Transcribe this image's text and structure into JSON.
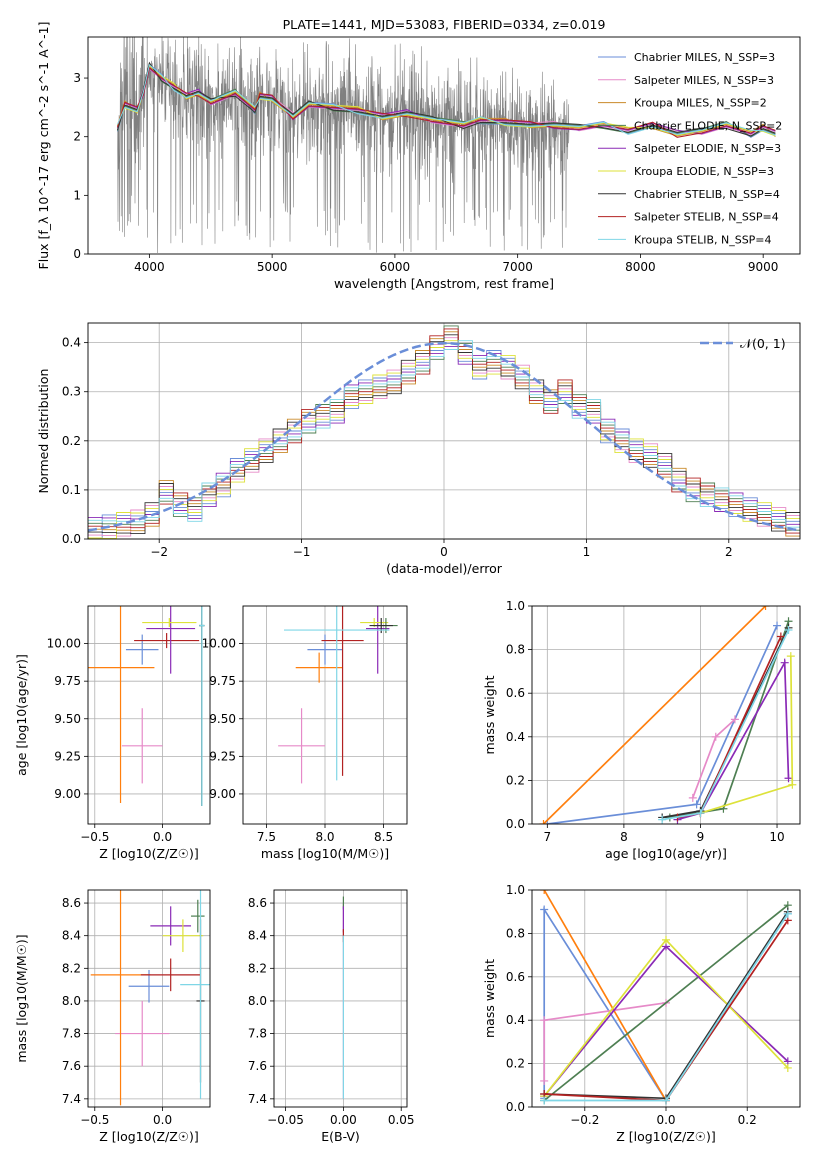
{
  "chart_data": [
    {
      "type": "line",
      "title": "PLATE=1441, MJD=53083, FIBERID=0334, z=0.019",
      "xlabel": "wavelength [Angstrom, rest frame]",
      "ylabel": "Flux [f_λ 10^-17 erg cm^-2 s^-1 A^-1]",
      "xlim": [
        3500,
        9300
      ],
      "ylim": [
        0,
        3.7
      ],
      "xticks": [
        4000,
        5000,
        6000,
        7000,
        8000,
        9000
      ],
      "yticks": [
        0,
        1,
        2,
        3
      ],
      "grid": false,
      "legend_position": "top-right",
      "legend": [
        {
          "label": "Chabrier MILES, N_SSP=3",
          "color": "#6a8ed8"
        },
        {
          "label": "Salpeter MILES, N_SSP=3",
          "color": "#e68ac8"
        },
        {
          "label": "Kroupa MILES, N_SSP=2",
          "color": "#c98a2a"
        },
        {
          "label": "Chabrier ELODIE, N_SSP=2",
          "color": "#4e7f52"
        },
        {
          "label": "Salpeter ELODIE, N_SSP=3",
          "color": "#8a2ab6"
        },
        {
          "label": "Kroupa ELODIE, N_SSP=3",
          "color": "#dde23a"
        },
        {
          "label": "Chabrier STELIB, N_SSP=4",
          "color": "#333333"
        },
        {
          "label": "Salpeter STELIB, N_SSP=4",
          "color": "#b22222"
        },
        {
          "label": "Kroupa STELIB, N_SSP=4",
          "color": "#7fd6e6"
        }
      ],
      "data_spectrum": {
        "color": "#808080",
        "wavelength_range": [
          3740,
          7420
        ],
        "median_flux": 2.3,
        "noise_band": [
          0.2,
          3.7
        ]
      },
      "model_spectrum": {
        "x": [
          3740,
          3800,
          3900,
          3950,
          4000,
          4100,
          4200,
          4300,
          4400,
          4500,
          4700,
          4860,
          4900,
          5000,
          5170,
          5300,
          5500,
          5700,
          5900,
          6100,
          6300,
          6560,
          6700,
          6900,
          7100,
          7300,
          7500,
          7700,
          7900,
          8100,
          8300,
          8500,
          8700,
          8900,
          9000,
          9100
        ],
        "y": [
          2.15,
          2.55,
          2.45,
          2.75,
          3.2,
          3.0,
          2.85,
          2.7,
          2.75,
          2.6,
          2.75,
          2.45,
          2.7,
          2.65,
          2.35,
          2.55,
          2.5,
          2.45,
          2.35,
          2.4,
          2.3,
          2.2,
          2.28,
          2.25,
          2.2,
          2.2,
          2.15,
          2.2,
          2.1,
          2.2,
          2.05,
          2.1,
          2.2,
          2.05,
          2.15,
          2.05
        ]
      }
    },
    {
      "type": "bar",
      "xlabel": "(data-model)/error",
      "ylabel": "Normed distribution",
      "xlim": [
        -2.5,
        2.5
      ],
      "ylim": [
        0,
        0.44
      ],
      "xticks": [
        -2,
        -1,
        0,
        1,
        2
      ],
      "yticks": [
        0.0,
        0.1,
        0.2,
        0.3,
        0.4
      ],
      "grid": true,
      "legend_position": "top-right",
      "legend": [
        {
          "label": "𝒩(0, 1)",
          "color": "#6a8ed8",
          "style": "dashed"
        }
      ],
      "bin_width": 0.1,
      "bin_start": -2.5,
      "histogram_values": [
        0.02,
        0.025,
        0.03,
        0.035,
        0.05,
        0.095,
        0.07,
        0.06,
        0.09,
        0.11,
        0.14,
        0.16,
        0.18,
        0.2,
        0.22,
        0.24,
        0.25,
        0.26,
        0.29,
        0.3,
        0.31,
        0.32,
        0.34,
        0.36,
        0.39,
        0.41,
        0.38,
        0.35,
        0.36,
        0.35,
        0.33,
        0.3,
        0.28,
        0.3,
        0.27,
        0.26,
        0.22,
        0.2,
        0.18,
        0.17,
        0.15,
        0.12,
        0.1,
        0.09,
        0.08,
        0.07,
        0.06,
        0.05,
        0.04,
        0.03
      ]
    },
    {
      "type": "scatter",
      "xlabel": "Z [log10(Z/Z☉)]",
      "ylabel": "age [log10(age/yr)]",
      "xlim": [
        -0.55,
        0.35
      ],
      "ylim": [
        8.8,
        10.25
      ],
      "xticks": [
        -0.5,
        0.0
      ],
      "yticks": [
        9.0,
        9.25,
        9.5,
        9.75,
        10.0
      ],
      "grid": true,
      "errorbars": [
        {
          "color": "#e68ac8",
          "x": -0.15,
          "xerr": 0.15,
          "y": 9.32,
          "yerr": 0.25
        },
        {
          "color": "#ff7f0e",
          "x": -0.31,
          "xerr": 0.25,
          "y": 9.84,
          "yerr": 0.9
        },
        {
          "color": "#6a8ed8",
          "x": -0.15,
          "xerr": 0.12,
          "y": 9.96,
          "yerr": 0.1
        },
        {
          "color": "#b22222",
          "x": 0.03,
          "xerr": 0.24,
          "y": 10.02,
          "yerr": 0.05
        },
        {
          "color": "#8a2ab6",
          "x": 0.06,
          "xerr": 0.18,
          "y": 10.1,
          "yerr": 0.3
        },
        {
          "color": "#dde23a",
          "x": 0.05,
          "xerr": 0.2,
          "y": 10.14,
          "yerr": 0.03
        },
        {
          "color": "#4e7f52",
          "x": 0.29,
          "xerr": 0.02,
          "y": 10.12,
          "yerr": 1.2
        },
        {
          "color": "#333333",
          "x": 0.29,
          "xerr": 0.02,
          "y": 10.12,
          "yerr": 1.2
        },
        {
          "color": "#7fd6e6",
          "x": 0.29,
          "xerr": 0.02,
          "y": 10.12,
          "yerr": 1.2
        }
      ]
    },
    {
      "type": "scatter",
      "xlabel": "mass [log10(M/M☉)]",
      "ylabel": "",
      "xlim": [
        7.3,
        8.7
      ],
      "ylim": [
        8.8,
        10.25
      ],
      "xticks": [
        7.5,
        8.0,
        8.5
      ],
      "yticks": [
        9.0,
        9.25,
        9.5,
        9.75,
        10.0
      ],
      "grid": true,
      "errorbars": [
        {
          "color": "#e68ac8",
          "x": 7.8,
          "xerr": 0.2,
          "y": 9.32,
          "yerr": 0.25
        },
        {
          "color": "#ff7f0e",
          "x": 7.95,
          "xerr": 0.2,
          "y": 9.84,
          "yerr": 0.1
        },
        {
          "color": "#6a8ed8",
          "x": 8.0,
          "xerr": 0.15,
          "y": 9.96,
          "yerr": 0.1
        },
        {
          "color": "#b22222",
          "x": 8.15,
          "xerr": 0.18,
          "y": 10.02,
          "yerr": 0.9
        },
        {
          "color": "#8a2ab6",
          "x": 8.45,
          "xerr": 0.1,
          "y": 10.1,
          "yerr": 0.3
        },
        {
          "color": "#dde23a",
          "x": 8.42,
          "xerr": 0.12,
          "y": 10.14,
          "yerr": 0.03
        },
        {
          "color": "#4e7f52",
          "x": 8.52,
          "xerr": 0.1,
          "y": 10.12,
          "yerr": 0.05
        },
        {
          "color": "#333333",
          "x": 8.48,
          "xerr": 0.1,
          "y": 10.12,
          "yerr": 0.05
        },
        {
          "color": "#7fd6e6",
          "x": 8.1,
          "xerr": 0.45,
          "y": 10.09,
          "yerr": 1.0
        }
      ]
    },
    {
      "type": "line",
      "xlabel": "age [log10(age/yr)]",
      "ylabel": "mass weight",
      "xlim": [
        6.8,
        10.3
      ],
      "ylim": [
        0,
        1
      ],
      "xticks": [
        7,
        8,
        9,
        10
      ],
      "yticks": [
        0.0,
        0.2,
        0.4,
        0.6,
        0.8,
        1.0
      ],
      "grid": true,
      "series": [
        {
          "color": "#6a8ed8",
          "x": [
            7.0,
            8.95,
            10.0
          ],
          "y": [
            0.0,
            0.09,
            0.91
          ]
        },
        {
          "color": "#e68ac8",
          "x": [
            8.9,
            9.2,
            9.45
          ],
          "y": [
            0.12,
            0.4,
            0.48
          ]
        },
        {
          "color": "#ff7f0e",
          "x": [
            6.95,
            9.85
          ],
          "y": [
            0.0,
            1.0
          ]
        },
        {
          "color": "#4e7f52",
          "x": [
            8.6,
            9.3,
            10.15
          ],
          "y": [
            0.03,
            0.07,
            0.93
          ]
        },
        {
          "color": "#8a2ab6",
          "x": [
            8.7,
            9.0,
            10.1,
            10.15
          ],
          "y": [
            0.02,
            0.05,
            0.74,
            0.21
          ]
        },
        {
          "color": "#dde23a",
          "x": [
            9.0,
            10.2,
            10.18
          ],
          "y": [
            0.05,
            0.18,
            0.77
          ]
        },
        {
          "color": "#333333",
          "x": [
            8.5,
            9.0,
            10.15
          ],
          "y": [
            0.03,
            0.06,
            0.9
          ]
        },
        {
          "color": "#b22222",
          "x": [
            8.7,
            9.0,
            10.05
          ],
          "y": [
            0.03,
            0.05,
            0.86
          ]
        },
        {
          "color": "#7fd6e6",
          "x": [
            8.5,
            9.0,
            10.15
          ],
          "y": [
            0.02,
            0.05,
            0.89
          ]
        }
      ]
    },
    {
      "type": "scatter",
      "xlabel": "Z [log10(Z/Z☉)]",
      "ylabel": "mass [log10(M/M☉)]",
      "xlim": [
        -0.55,
        0.35
      ],
      "ylim": [
        7.35,
        8.68
      ],
      "xticks": [
        -0.5,
        0.0
      ],
      "yticks": [
        7.4,
        7.6,
        7.8,
        8.0,
        8.2,
        8.4,
        8.6
      ],
      "grid": true,
      "errorbars": [
        {
          "color": "#e68ac8",
          "x": -0.15,
          "xerr": 0.2,
          "y": 7.8,
          "yerr": 0.2
        },
        {
          "color": "#ff7f0e",
          "x": -0.31,
          "xerr": 0.22,
          "y": 8.16,
          "yerr": 0.8
        },
        {
          "color": "#6a8ed8",
          "x": -0.1,
          "xerr": 0.15,
          "y": 8.09,
          "yerr": 0.1
        },
        {
          "color": "#b22222",
          "x": 0.06,
          "xerr": 0.22,
          "y": 8.16,
          "yerr": 0.1
        },
        {
          "color": "#8a2ab6",
          "x": 0.06,
          "xerr": 0.15,
          "y": 8.46,
          "yerr": 0.12
        },
        {
          "color": "#dde23a",
          "x": 0.15,
          "xerr": 0.15,
          "y": 8.4,
          "yerr": 0.1
        },
        {
          "color": "#4e7f52",
          "x": 0.26,
          "xerr": 0.05,
          "y": 8.52,
          "yerr": 0.1
        },
        {
          "color": "#333333",
          "x": 0.28,
          "xerr": 0.03,
          "y": 8.0,
          "yerr": 0.5
        },
        {
          "color": "#7fd6e6",
          "x": 0.28,
          "xerr": 0.15,
          "y": 8.1,
          "yerr": 0.7
        }
      ]
    },
    {
      "type": "scatter",
      "xlabel": "E(B-V)",
      "ylabel": "",
      "xlim": [
        -0.06,
        0.055
      ],
      "ylim": [
        7.35,
        8.68
      ],
      "xticks": [
        -0.05,
        0.0,
        0.05
      ],
      "yticks": [
        7.4,
        7.6,
        7.8,
        8.0,
        8.2,
        8.4,
        8.6
      ],
      "grid": true,
      "errorbars": [
        {
          "color": "#e68ac8",
          "x": 0.0,
          "xerr": 0.0,
          "y": 8.0,
          "yerr": 0.6
        },
        {
          "color": "#4e7f52",
          "x": 0.0,
          "xerr": 0.0,
          "y": 8.6,
          "yerr": 0.04
        },
        {
          "color": "#8a2ab6",
          "x": 0.0,
          "xerr": 0.0,
          "y": 8.5,
          "yerr": 0.08
        },
        {
          "color": "#b22222",
          "x": 0.0,
          "xerr": 0.0,
          "y": 8.4,
          "yerr": 0.04
        },
        {
          "color": "#7fd6e6",
          "x": 0.0,
          "xerr": 0.0,
          "y": 7.9,
          "yerr": 0.5
        }
      ]
    },
    {
      "type": "line",
      "xlabel": "Z [log10(Z/Z☉)]",
      "ylabel": "mass weight",
      "xlim": [
        -0.33,
        0.33
      ],
      "ylim": [
        0,
        1
      ],
      "xticks": [
        -0.2,
        0.0,
        0.2
      ],
      "yticks": [
        0.0,
        0.2,
        0.4,
        0.6,
        0.8,
        1.0
      ],
      "grid": true,
      "series": [
        {
          "color": "#6a8ed8",
          "x": [
            -0.3,
            -0.3,
            0.0,
            0.3
          ],
          "y": [
            0.04,
            0.91,
            0.03,
            0.89
          ]
        },
        {
          "color": "#e68ac8",
          "x": [
            -0.3,
            -0.3,
            0.0
          ],
          "y": [
            0.12,
            0.4,
            0.48
          ]
        },
        {
          "color": "#ff7f0e",
          "x": [
            -0.3,
            0.0
          ],
          "y": [
            1.0,
            0.03
          ]
        },
        {
          "color": "#4e7f52",
          "x": [
            -0.3,
            0.3
          ],
          "y": [
            0.03,
            0.93
          ]
        },
        {
          "color": "#8a2ab6",
          "x": [
            -0.3,
            0.0,
            0.3
          ],
          "y": [
            0.05,
            0.74,
            0.21
          ]
        },
        {
          "color": "#dde23a",
          "x": [
            -0.3,
            0.0,
            0.3
          ],
          "y": [
            0.05,
            0.77,
            0.18
          ]
        },
        {
          "color": "#333333",
          "x": [
            -0.3,
            0.0,
            0.3
          ],
          "y": [
            0.06,
            0.04,
            0.9
          ]
        },
        {
          "color": "#b22222",
          "x": [
            -0.3,
            0.0,
            0.3
          ],
          "y": [
            0.06,
            0.03,
            0.86
          ]
        },
        {
          "color": "#7fd6e6",
          "x": [
            -0.3,
            0.0,
            0.3
          ],
          "y": [
            0.03,
            0.03,
            0.89
          ]
        }
      ]
    }
  ]
}
